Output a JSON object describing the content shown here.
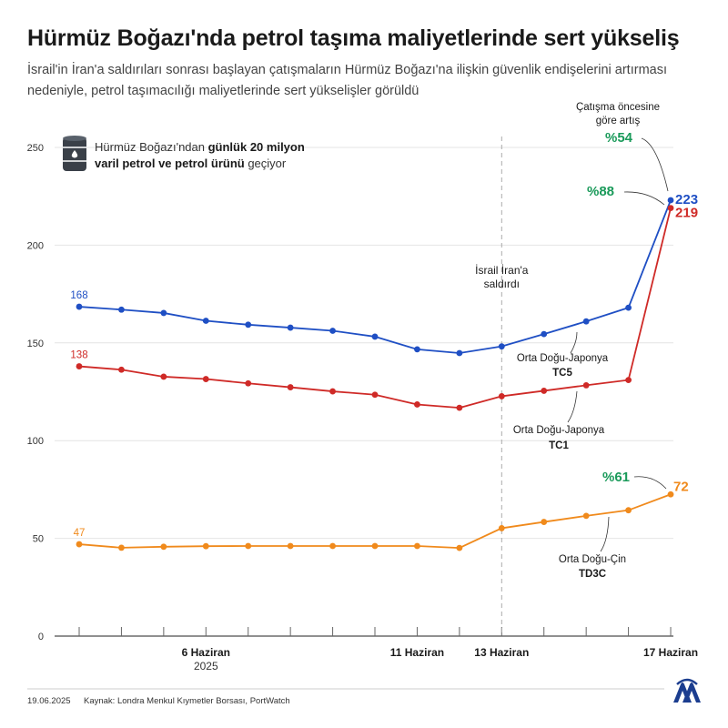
{
  "header": {
    "title": "Hürmüz Boğazı'nda petrol taşıma maliyetlerinde sert yükseliş",
    "subtitle": "İsrail'in İran'a saldırıları sonrası başlayan çatışmaların Hürmüz Boğazı'na ilişkin güvenlik endişelerini artırması nedeniyle, petrol taşımacılığı maliyetlerinde sert yükselişler görüldü"
  },
  "footer": {
    "date": "19.06.2025",
    "source": "Kaynak: Londra Menkul Kıymetler Borsası, PortWatch"
  },
  "info": {
    "line1_normal": "Hürmüz Boğazı'ndan ",
    "line1_bold": "günlük 20 milyon",
    "line2_bold": "varil petrol ve petrol ürünü",
    "line2_normal": " geçiyor",
    "icon": "oil-barrel-icon"
  },
  "chart_data": {
    "type": "line",
    "ylim": [
      0,
      250
    ],
    "yticks": [
      0,
      50,
      100,
      150,
      200,
      250
    ],
    "x_count": 15,
    "xticks": [
      {
        "index": 3,
        "label": "6 Haziran",
        "sublabel": "2025"
      },
      {
        "index": 8,
        "label": "11 Haziran",
        "sublabel": ""
      },
      {
        "index": 10,
        "label": "13 Haziran",
        "sublabel": ""
      },
      {
        "index": 14,
        "label": "17 Haziran",
        "sublabel": ""
      }
    ],
    "series": [
      {
        "key": "tc5",
        "name": "Orta Doğu-Japonya",
        "code": "TC5",
        "color": "#1f4fc4",
        "values": [
          168.5,
          167,
          165.3,
          161.3,
          159.3,
          157.8,
          156.2,
          153.2,
          146.7,
          144.8,
          148.2,
          154.5,
          161,
          168,
          223
        ],
        "start_label": "168",
        "end_label": "223"
      },
      {
        "key": "tc1",
        "name": "Orta Doğu-Japonya",
        "code": "TC1",
        "color": "#cf2a27",
        "values": [
          138,
          136.3,
          132.7,
          131.5,
          129.3,
          127.3,
          125.2,
          123.5,
          118.5,
          116.8,
          122.7,
          125.5,
          128.3,
          131,
          219
        ],
        "start_label": "138",
        "end_label": "219"
      },
      {
        "key": "td3c",
        "name": "Orta Doğu-Çin",
        "code": "TD3C",
        "color": "#f08a1c",
        "values": [
          47,
          45.2,
          45.7,
          46,
          46.1,
          46.1,
          46.1,
          46.1,
          46.1,
          45.1,
          55.2,
          58.4,
          61.5,
          64.4,
          72.5
        ],
        "start_label": "47",
        "end_label": "72"
      }
    ],
    "event": {
      "index": 10,
      "label_line1": "İsrail İran'a",
      "label_line2": "saldırdı"
    },
    "annotations": {
      "pre_conflict_line1": "Çatışma öncesine",
      "pre_conflict_line2": "göre artış",
      "tc5_pct": "%54",
      "tc1_pct": "%88",
      "td3c_pct": "%61",
      "pct_color": "#1a9a5a"
    }
  }
}
